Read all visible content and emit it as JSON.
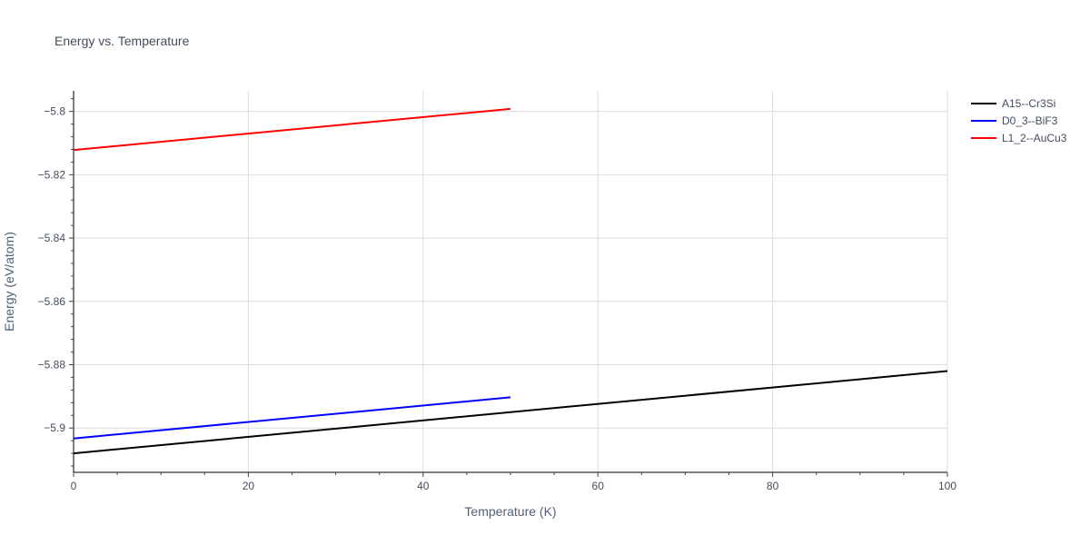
{
  "chart_data": {
    "type": "line",
    "title": "Energy vs. Temperature",
    "xlabel": "Temperature (K)",
    "ylabel": "Energy (eV/atom)",
    "xlim": [
      0,
      100
    ],
    "ylim": [
      -5.914,
      -5.7935
    ],
    "x_ticks": [
      0,
      20,
      40,
      60,
      80,
      100
    ],
    "x_tick_labels": [
      "0",
      "20",
      "40",
      "60",
      "80",
      "100"
    ],
    "y_ticks": [
      -5.8,
      -5.82,
      -5.84,
      -5.86,
      -5.88,
      -5.9
    ],
    "y_tick_labels": [
      "−5.8",
      "−5.82",
      "−5.84",
      "−5.86",
      "−5.88",
      "−5.9"
    ],
    "grid": true,
    "legend_position": "top-right outside",
    "series": [
      {
        "name": "A15--Cr3Si",
        "color": "#000000",
        "x": [
          0,
          100
        ],
        "y": [
          -5.908,
          -5.882
        ]
      },
      {
        "name": "D0_3--BiF3",
        "color": "#0000ff",
        "x": [
          0,
          50
        ],
        "y": [
          -5.9033,
          -5.8903
        ]
      },
      {
        "name": "L1_2--AuCu3",
        "color": "#ff0000",
        "x": [
          0,
          50
        ],
        "y": [
          -5.8122,
          -5.7992
        ]
      }
    ]
  }
}
